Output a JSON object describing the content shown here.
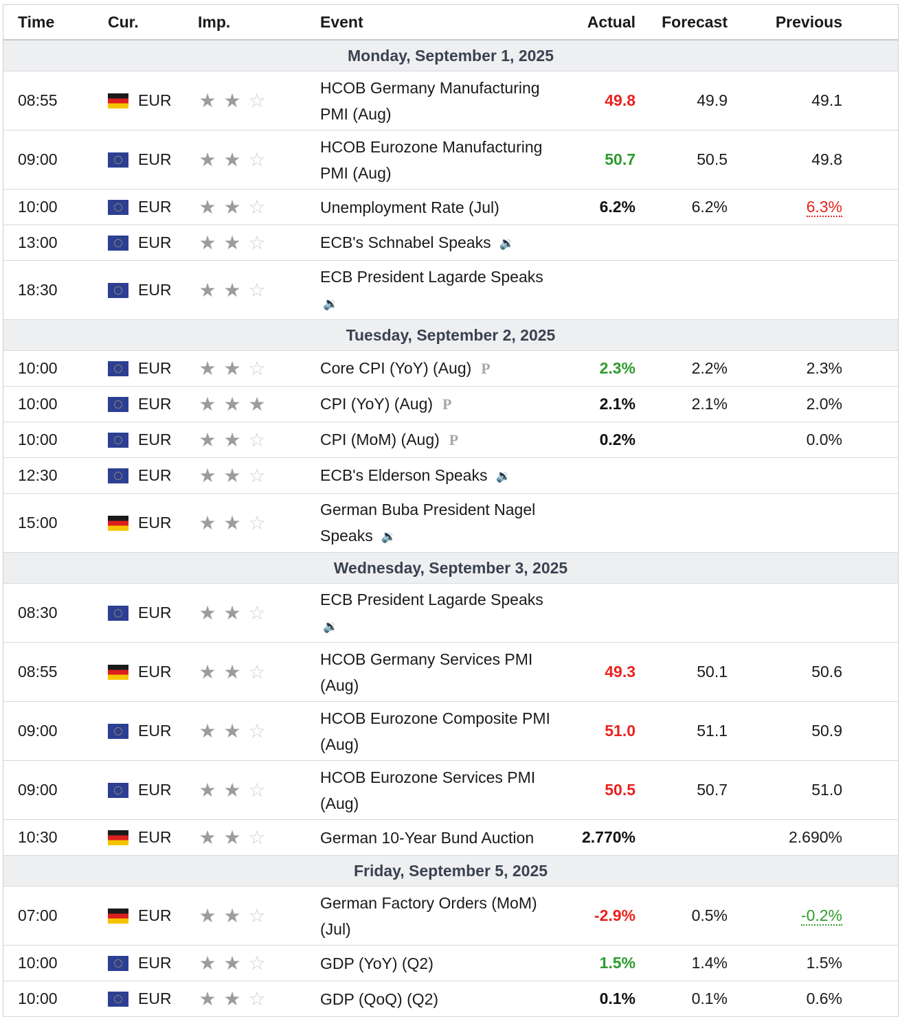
{
  "headers": {
    "time": "Time",
    "cur": "Cur.",
    "imp": "Imp.",
    "event": "Event",
    "actual": "Actual",
    "forecast": "Forecast",
    "previous": "Previous"
  },
  "colors": {
    "red": "#e8221e",
    "green": "#2c9c2c",
    "black": "#111111"
  },
  "groups": [
    {
      "date": "Monday, September 1, 2025",
      "rows": [
        {
          "time": "08:55",
          "flag": "germany-flag",
          "cur": "EUR",
          "stars": 2,
          "event": "HCOB Germany Manufacturing PMI (Aug)",
          "icon": "",
          "actual": "49.8",
          "actual_color": "red",
          "forecast": "49.9",
          "previous": "49.1",
          "previous_color": "",
          "tall": true
        },
        {
          "time": "09:00",
          "flag": "eu-flag",
          "cur": "EUR",
          "stars": 2,
          "event": "HCOB Eurozone Manufacturing PMI (Aug)",
          "icon": "",
          "actual": "50.7",
          "actual_color": "green",
          "forecast": "50.5",
          "previous": "49.8",
          "previous_color": "",
          "tall": true
        },
        {
          "time": "10:00",
          "flag": "eu-flag",
          "cur": "EUR",
          "stars": 2,
          "event": "Unemployment Rate (Jul)",
          "icon": "",
          "actual": "6.2%",
          "actual_color": "black",
          "forecast": "6.2%",
          "previous": "6.3%",
          "previous_color": "red",
          "tall": false
        },
        {
          "time": "13:00",
          "flag": "eu-flag",
          "cur": "EUR",
          "stars": 2,
          "event": "ECB's Schnabel Speaks",
          "icon": "speaker",
          "actual": "",
          "actual_color": "",
          "forecast": "",
          "previous": "",
          "previous_color": "",
          "tall": false
        },
        {
          "time": "18:30",
          "flag": "eu-flag",
          "cur": "EUR",
          "stars": 2,
          "event": "ECB President Lagarde Speaks",
          "icon": "speaker-wrap",
          "actual": "",
          "actual_color": "",
          "forecast": "",
          "previous": "",
          "previous_color": "",
          "tall": true
        }
      ]
    },
    {
      "date": "Tuesday, September 2, 2025",
      "rows": [
        {
          "time": "10:00",
          "flag": "eu-flag",
          "cur": "EUR",
          "stars": 2,
          "event": "Core CPI (YoY) (Aug)",
          "icon": "preliminary",
          "actual": "2.3%",
          "actual_color": "green",
          "forecast": "2.2%",
          "previous": "2.3%",
          "previous_color": "",
          "tall": false
        },
        {
          "time": "10:00",
          "flag": "eu-flag",
          "cur": "EUR",
          "stars": 3,
          "event": "CPI (YoY) (Aug)",
          "icon": "preliminary",
          "actual": "2.1%",
          "actual_color": "black",
          "forecast": "2.1%",
          "previous": "2.0%",
          "previous_color": "",
          "tall": false
        },
        {
          "time": "10:00",
          "flag": "eu-flag",
          "cur": "EUR",
          "stars": 2,
          "event": "CPI (MoM) (Aug)",
          "icon": "preliminary",
          "actual": "0.2%",
          "actual_color": "black",
          "forecast": "",
          "previous": "0.0%",
          "previous_color": "",
          "tall": false
        },
        {
          "time": "12:30",
          "flag": "eu-flag",
          "cur": "EUR",
          "stars": 2,
          "event": "ECB's Elderson Speaks",
          "icon": "speaker",
          "actual": "",
          "actual_color": "",
          "forecast": "",
          "previous": "",
          "previous_color": "",
          "tall": false
        },
        {
          "time": "15:00",
          "flag": "germany-flag",
          "cur": "EUR",
          "stars": 2,
          "event": "German Buba President Nagel Speaks",
          "icon": "speaker",
          "actual": "",
          "actual_color": "",
          "forecast": "",
          "previous": "",
          "previous_color": "",
          "tall": true
        }
      ]
    },
    {
      "date": "Wednesday, September 3, 2025",
      "rows": [
        {
          "time": "08:30",
          "flag": "eu-flag",
          "cur": "EUR",
          "stars": 2,
          "event": "ECB President Lagarde Speaks",
          "icon": "speaker-wrap",
          "actual": "",
          "actual_color": "",
          "forecast": "",
          "previous": "",
          "previous_color": "",
          "tall": true
        },
        {
          "time": "08:55",
          "flag": "germany-flag",
          "cur": "EUR",
          "stars": 2,
          "event": "HCOB Germany Services PMI (Aug)",
          "icon": "",
          "actual": "49.3",
          "actual_color": "red",
          "forecast": "50.1",
          "previous": "50.6",
          "previous_color": "",
          "tall": true
        },
        {
          "time": "09:00",
          "flag": "eu-flag",
          "cur": "EUR",
          "stars": 2,
          "event": "HCOB Eurozone Composite PMI (Aug)",
          "icon": "",
          "actual": "51.0",
          "actual_color": "red",
          "forecast": "51.1",
          "previous": "50.9",
          "previous_color": "",
          "tall": true
        },
        {
          "time": "09:00",
          "flag": "eu-flag",
          "cur": "EUR",
          "stars": 2,
          "event": "HCOB Eurozone Services PMI (Aug)",
          "icon": "",
          "actual": "50.5",
          "actual_color": "red",
          "forecast": "50.7",
          "previous": "51.0",
          "previous_color": "",
          "tall": true
        },
        {
          "time": "10:30",
          "flag": "germany-flag",
          "cur": "EUR",
          "stars": 2,
          "event": "German 10-Year Bund Auction",
          "icon": "",
          "actual": "2.770%",
          "actual_color": "black",
          "forecast": "",
          "previous": "2.690%",
          "previous_color": "",
          "tall": false
        }
      ]
    },
    {
      "date": "Friday, September 5, 2025",
      "rows": [
        {
          "time": "07:00",
          "flag": "germany-flag",
          "cur": "EUR",
          "stars": 2,
          "event": "German Factory Orders (MoM) (Jul)",
          "icon": "",
          "actual": "-2.9%",
          "actual_color": "red",
          "forecast": "0.5%",
          "previous": "-0.2%",
          "previous_color": "green",
          "tall": true
        },
        {
          "time": "10:00",
          "flag": "eu-flag",
          "cur": "EUR",
          "stars": 2,
          "event": "GDP (YoY) (Q2)",
          "icon": "",
          "actual": "1.5%",
          "actual_color": "green",
          "forecast": "1.4%",
          "previous": "1.5%",
          "previous_color": "",
          "tall": false
        },
        {
          "time": "10:00",
          "flag": "eu-flag",
          "cur": "EUR",
          "stars": 2,
          "event": "GDP (QoQ) (Q2)",
          "icon": "",
          "actual": "0.1%",
          "actual_color": "black",
          "forecast": "0.1%",
          "previous": "0.6%",
          "previous_color": "",
          "tall": false
        }
      ]
    }
  ]
}
